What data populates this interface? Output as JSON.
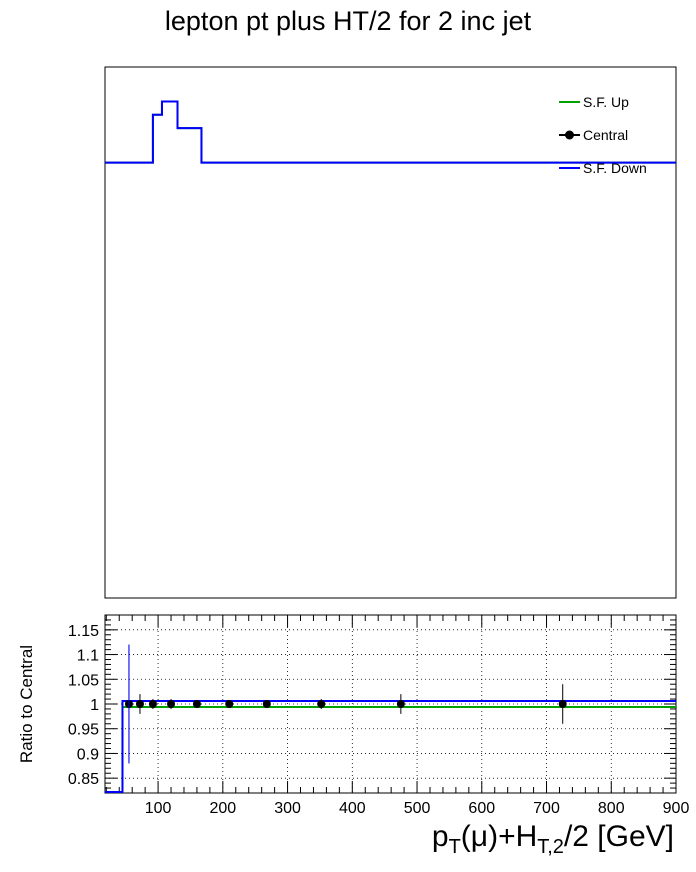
{
  "title": "lepton pt plus HT/2 for 2 inc jet",
  "chart_data": [
    {
      "type": "line",
      "panel": "main",
      "legend_placement": "top-right",
      "series": [
        {
          "name": "S.F. Up",
          "color": "#00a000"
        },
        {
          "name": "Central",
          "color": "#000000",
          "marker": "circle"
        },
        {
          "name": "S.F. Down",
          "color": "#0000ff"
        }
      ],
      "note": "",
      "histogram_steps": [
        {
          "x0": 0,
          "x1": 45,
          "level": 0.82
        },
        {
          "x0": 45,
          "x1": 92,
          "level": 0.82
        },
        {
          "x0": 92,
          "x1": 106,
          "level": 0.91
        },
        {
          "x0": 106,
          "x1": 130,
          "level": 0.935
        },
        {
          "x0": 130,
          "x1": 167,
          "level": 0.885
        },
        {
          "x0": 167,
          "x1": 900,
          "level": 0.82
        }
      ],
      "xlim": [
        18,
        900
      ],
      "ylim": [
        0,
        1
      ]
    },
    {
      "type": "scatter",
      "panel": "ratio",
      "ylabel": "Ratio to Central",
      "xlabel_parts": {
        "p": "p",
        "p_sub": "T",
        "mid": "(μ)+H",
        "h_sub": "T,2",
        "end": "/2 [GeV]"
      },
      "xlim": [
        18,
        900
      ],
      "ylim": [
        0.82,
        1.18
      ],
      "x_ticks": [
        100,
        200,
        300,
        400,
        500,
        600,
        700,
        800,
        900
      ],
      "y_ticks": [
        0.85,
        0.9,
        0.95,
        1,
        1.05,
        1.1,
        1.15
      ],
      "y_tick_labels": [
        "0.85",
        "0.9",
        "0.95",
        "1",
        "1.05",
        "1.1",
        "1.15"
      ],
      "grid": true,
      "central_points": [
        {
          "x": 55,
          "y": 1.0,
          "err": 0.12
        },
        {
          "x": 72,
          "y": 1.0,
          "err": 0.02
        },
        {
          "x": 92,
          "y": 1.0,
          "err": 0.01
        },
        {
          "x": 120,
          "y": 1.0,
          "err": 0.01
        },
        {
          "x": 160,
          "y": 1.0,
          "err": 0.008
        },
        {
          "x": 210,
          "y": 1.0,
          "err": 0.008
        },
        {
          "x": 268,
          "y": 1.0,
          "err": 0.008
        },
        {
          "x": 352,
          "y": 1.0,
          "err": 0.01
        },
        {
          "x": 475,
          "y": 1.0,
          "err": 0.02
        },
        {
          "x": 725,
          "y": 1.0,
          "err": 0.04
        }
      ],
      "up_level": 0.994,
      "down_level": 1.006,
      "low_edge_x": 45
    }
  ]
}
